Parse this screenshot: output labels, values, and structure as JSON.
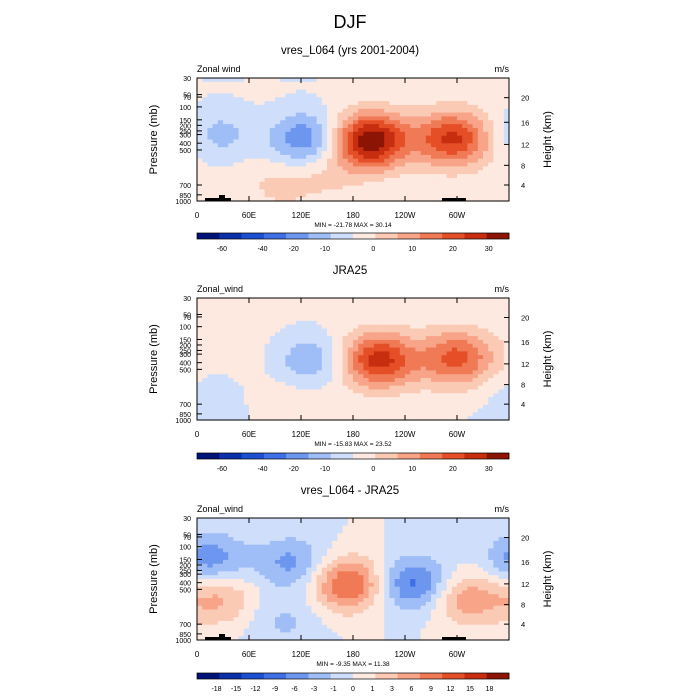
{
  "figure_title": "DJF",
  "chart_data": [
    {
      "type": "heatmap",
      "title": "vres_L064 (yrs 2001-2004)",
      "left_label": "Zonal wind",
      "units": "m/s",
      "ylabel": "Pressure (mb)",
      "ylabel_right": "Height (km)",
      "xticks": [
        "0",
        "60E",
        "120E",
        "180",
        "120W",
        "60W"
      ],
      "yticks": [
        "30",
        "50",
        "70",
        "100",
        "150",
        "200",
        "250",
        "300",
        "400",
        "500",
        "700",
        "850",
        "1000"
      ],
      "height_ticks": [
        "20",
        "16",
        "12",
        "8",
        "4"
      ],
      "stats_label": "MIN = -21.78  MAX = 30.14",
      "colorbar_labels": [
        "-60",
        "-40",
        "-20",
        "-10",
        "0",
        "10",
        "20",
        "30"
      ],
      "features": [
        {
          "lon": 125,
          "p": 170,
          "value": -15
        },
        {
          "lon": 25,
          "p": 150,
          "value": -8
        },
        {
          "lon": 200,
          "p": 180,
          "value": 30
        },
        {
          "lon": 295,
          "p": 170,
          "value": 22
        },
        {
          "lon": 95,
          "p": 700,
          "value": 5
        },
        {
          "lon": 150,
          "p": 500,
          "value": 4
        }
      ]
    },
    {
      "type": "heatmap",
      "title": "JRA25",
      "left_label": "Zonal_wind",
      "units": "m/s",
      "ylabel": "Pressure (mb)",
      "ylabel_right": "Height (km)",
      "xticks": [
        "0",
        "60E",
        "120E",
        "180",
        "120W",
        "60W"
      ],
      "yticks": [
        "30",
        "50",
        "70",
        "100",
        "150",
        "200",
        "250",
        "300",
        "400",
        "500",
        "700",
        "850",
        "1000"
      ],
      "height_ticks": [
        "20",
        "16",
        "12",
        "8",
        "4"
      ],
      "stats_label": "MIN = -15.83  MAX = 23.52",
      "colorbar_labels": [
        "-60",
        "-40",
        "-20",
        "-10",
        "0",
        "10",
        "20",
        "30"
      ],
      "features": [
        {
          "lon": 130,
          "p": 180,
          "value": -10
        },
        {
          "lon": 15,
          "p": 500,
          "value": -4
        },
        {
          "lon": 210,
          "p": 180,
          "value": 23
        },
        {
          "lon": 300,
          "p": 170,
          "value": 18
        },
        {
          "lon": 110,
          "p": 700,
          "value": 3
        }
      ]
    },
    {
      "type": "heatmap",
      "title": "vres_L064 - JRA25",
      "left_label": "Zonal_wind",
      "units": "m/s",
      "ylabel": "Pressure (mb)",
      "ylabel_right": "Height (km)",
      "xticks": [
        "0",
        "60E",
        "120E",
        "180",
        "120W",
        "60W"
      ],
      "yticks": [
        "30",
        "50",
        "70",
        "100",
        "150",
        "200",
        "250",
        "300",
        "400",
        "500",
        "700",
        "850",
        "1000"
      ],
      "height_ticks": [
        "20",
        "16",
        "12",
        "8",
        "4"
      ],
      "stats_label": "MIN = -9.35  MAX = 11.38",
      "colorbar_labels": [
        "-18",
        "-15",
        "-12",
        "-9",
        "-6",
        "-3",
        "-1",
        "0",
        "1",
        "3",
        "6",
        "9",
        "12",
        "15",
        "18"
      ],
      "features": [
        {
          "lon": 175,
          "p": 200,
          "value": 11
        },
        {
          "lon": 15,
          "p": 100,
          "value": -7
        },
        {
          "lon": 110,
          "p": 110,
          "value": -6
        },
        {
          "lon": 250,
          "p": 200,
          "value": -9
        },
        {
          "lon": 25,
          "p": 300,
          "value": 6
        },
        {
          "lon": 310,
          "p": 300,
          "value": 7
        },
        {
          "lon": 100,
          "p": 600,
          "value": -3
        }
      ]
    }
  ]
}
